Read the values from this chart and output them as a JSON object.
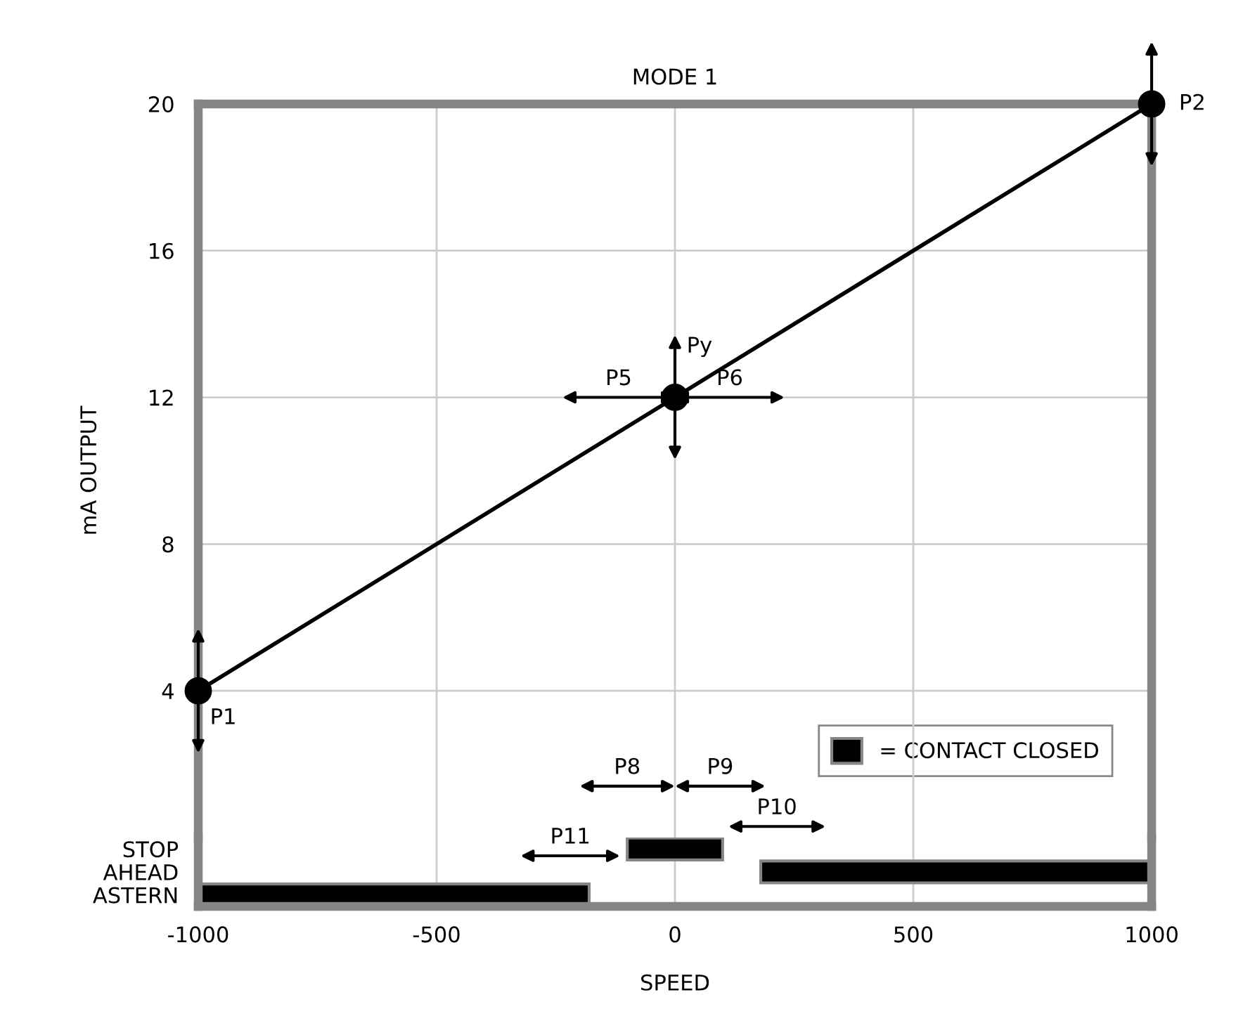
{
  "chart_data": [
    {
      "type": "line",
      "title": "MODE 1",
      "ylabel": "mA OUTPUT",
      "x": [
        -1000,
        0,
        1000
      ],
      "series": [
        {
          "color": "#000000",
          "values": [
            4,
            12,
            20
          ]
        }
      ],
      "marker": "circle",
      "line_style": "solid",
      "xlim": [
        -1000,
        1000
      ],
      "xticks": [
        -1000,
        -500,
        0,
        500,
        1000
      ],
      "ylim": [
        0,
        20
      ],
      "yticks": [
        4,
        8,
        12,
        16,
        20
      ],
      "grid": true,
      "tick_labels": "y",
      "annotations": [
        {
          "text": "P1",
          "x": -1000,
          "y": 4
        },
        {
          "text": "P2",
          "x": 1000,
          "y": 20
        },
        {
          "text": "Py",
          "x": 0,
          "y": 12
        },
        "P5",
        "P6",
        "P8",
        "P9",
        "P10",
        "P11"
      ]
    },
    {
      "type": "bar",
      "orientation": "horizontal",
      "xlabel": "SPEED",
      "categories": [
        "STOP",
        "AHEAD",
        "ASTERN"
      ],
      "series": [
        {
          "name": "= CONTACT CLOSED",
          "color": "#000000",
          "base": [
            -100,
            180,
            -1000
          ],
          "values": [
            200,
            820,
            820
          ]
        }
      ],
      "xlim": [
        -1000,
        1000
      ],
      "xticks": [
        -1000,
        -500,
        0,
        500,
        1000
      ],
      "grid": "x",
      "legend": "top right"
    }
  ]
}
